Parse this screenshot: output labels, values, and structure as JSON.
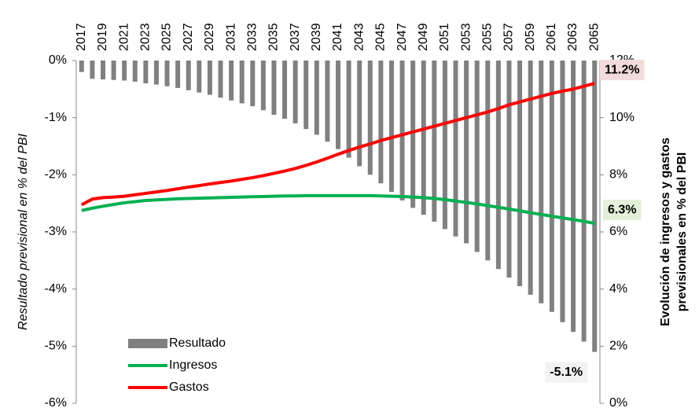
{
  "chart_data": {
    "type": "bar",
    "ylabel": "Resultado previsional en % del PBI",
    "y2label": [
      "Evolución de ingresos y gastos",
      "previsionales en % del PBI"
    ],
    "categories": [
      "2017",
      null,
      "2019",
      null,
      "2021",
      null,
      "2023",
      null,
      "2025",
      null,
      "2027",
      null,
      "2029",
      null,
      "2031",
      null,
      "2033",
      null,
      "2035",
      null,
      "2037",
      null,
      "2039",
      null,
      "2041",
      null,
      "2043",
      null,
      "2045",
      null,
      "2047",
      null,
      "2049",
      null,
      "2051",
      null,
      "2053",
      null,
      "2055",
      null,
      "2057",
      null,
      "2059",
      null,
      "2061",
      null,
      "2063",
      null,
      "2065"
    ],
    "ylim": [
      -6,
      0
    ],
    "yticks": [
      {
        "value": 0,
        "label": "0%"
      },
      {
        "value": -1,
        "label": "-1%"
      },
      {
        "value": -2,
        "label": "-2%"
      },
      {
        "value": -3,
        "label": "-3%"
      },
      {
        "value": -4,
        "label": "-4%"
      },
      {
        "value": -5,
        "label": "-5%"
      },
      {
        "value": -6,
        "label": "-6%"
      }
    ],
    "y2lim": [
      0,
      12
    ],
    "y2ticks": [
      {
        "value": 0,
        "label": "0%"
      },
      {
        "value": 2,
        "label": "2%"
      },
      {
        "value": 4,
        "label": "4%"
      },
      {
        "value": 6,
        "label": "6%"
      },
      {
        "value": 8,
        "label": "8%"
      },
      {
        "value": 10,
        "label": "10%"
      },
      {
        "value": 12,
        "label": "12%"
      }
    ],
    "legend": "lower-left",
    "series": [
      {
        "name": "Resultado",
        "type": "bar",
        "color": "#808080",
        "label_color": "#f2f2f2",
        "text_color": "#000000",
        "values": [
          -0.2,
          -0.32,
          -0.33,
          -0.34,
          -0.35,
          -0.37,
          -0.4,
          -0.42,
          -0.45,
          -0.48,
          -0.52,
          -0.56,
          -0.6,
          -0.65,
          -0.7,
          -0.75,
          -0.8,
          -0.87,
          -0.95,
          -1.02,
          -1.1,
          -1.2,
          -1.3,
          -1.42,
          -1.55,
          -1.7,
          -1.85,
          -2.0,
          -2.15,
          -2.3,
          -2.45,
          -2.58,
          -2.7,
          -2.82,
          -2.95,
          -3.08,
          -3.2,
          -3.35,
          -3.5,
          -3.65,
          -3.8,
          -3.95,
          -4.1,
          -4.25,
          -4.4,
          -4.58,
          -4.75,
          -4.92,
          -5.1
        ],
        "value_labels": [
          null,
          null,
          null,
          null,
          null,
          null,
          null,
          null,
          null,
          null,
          null,
          null,
          null,
          null,
          null,
          null,
          null,
          null,
          null,
          null,
          null,
          null,
          null,
          null,
          null,
          null,
          null,
          null,
          null,
          null,
          null,
          null,
          null,
          null,
          null,
          null,
          null,
          null,
          null,
          null,
          null,
          null,
          null,
          null,
          null,
          null,
          null,
          null,
          "-5.1%"
        ]
      },
      {
        "name": "Ingresos",
        "type": "line",
        "axis": "y2",
        "color": "#00b050",
        "label_color": "#e2f0d9",
        "text_color": "#00b050",
        "values": [
          6.75,
          6.83,
          6.9,
          6.96,
          7.02,
          7.06,
          7.1,
          7.12,
          7.14,
          7.16,
          7.17,
          7.18,
          7.19,
          7.2,
          7.21,
          7.22,
          7.23,
          7.24,
          7.25,
          7.26,
          7.26,
          7.27,
          7.27,
          7.27,
          7.27,
          7.27,
          7.27,
          7.27,
          7.26,
          7.25,
          7.24,
          7.22,
          7.2,
          7.17,
          7.13,
          7.08,
          7.03,
          6.98,
          6.92,
          6.86,
          6.8,
          6.74,
          6.67,
          6.61,
          6.55,
          6.49,
          6.43,
          6.37,
          6.3
        ],
        "value_labels": [
          null,
          null,
          null,
          null,
          null,
          null,
          null,
          null,
          null,
          null,
          null,
          null,
          null,
          null,
          null,
          null,
          null,
          null,
          null,
          null,
          null,
          null,
          null,
          null,
          null,
          null,
          null,
          null,
          null,
          null,
          null,
          null,
          null,
          null,
          null,
          null,
          null,
          null,
          null,
          null,
          null,
          null,
          null,
          null,
          null,
          null,
          null,
          null,
          "6.3%"
        ]
      },
      {
        "name": "Gastos",
        "type": "line",
        "axis": "y2",
        "color": "#ff0000",
        "label_color": "#f2dcdb",
        "text_color": "#c00000",
        "values": [
          6.95,
          7.15,
          7.2,
          7.22,
          7.25,
          7.3,
          7.35,
          7.4,
          7.45,
          7.51,
          7.57,
          7.62,
          7.68,
          7.73,
          7.78,
          7.84,
          7.9,
          7.97,
          8.05,
          8.13,
          8.22,
          8.33,
          8.45,
          8.58,
          8.72,
          8.85,
          8.97,
          9.08,
          9.2,
          9.3,
          9.4,
          9.5,
          9.6,
          9.7,
          9.8,
          9.9,
          10.0,
          10.1,
          10.2,
          10.32,
          10.45,
          10.55,
          10.65,
          10.75,
          10.85,
          10.93,
          11.0,
          11.1,
          11.2
        ],
        "value_labels": [
          null,
          null,
          null,
          null,
          null,
          null,
          null,
          null,
          null,
          null,
          null,
          null,
          null,
          null,
          null,
          null,
          null,
          null,
          null,
          null,
          null,
          null,
          null,
          null,
          null,
          null,
          null,
          null,
          null,
          null,
          null,
          null,
          null,
          null,
          null,
          null,
          null,
          null,
          null,
          null,
          null,
          null,
          null,
          null,
          null,
          null,
          null,
          null,
          "11.2%"
        ]
      }
    ]
  }
}
